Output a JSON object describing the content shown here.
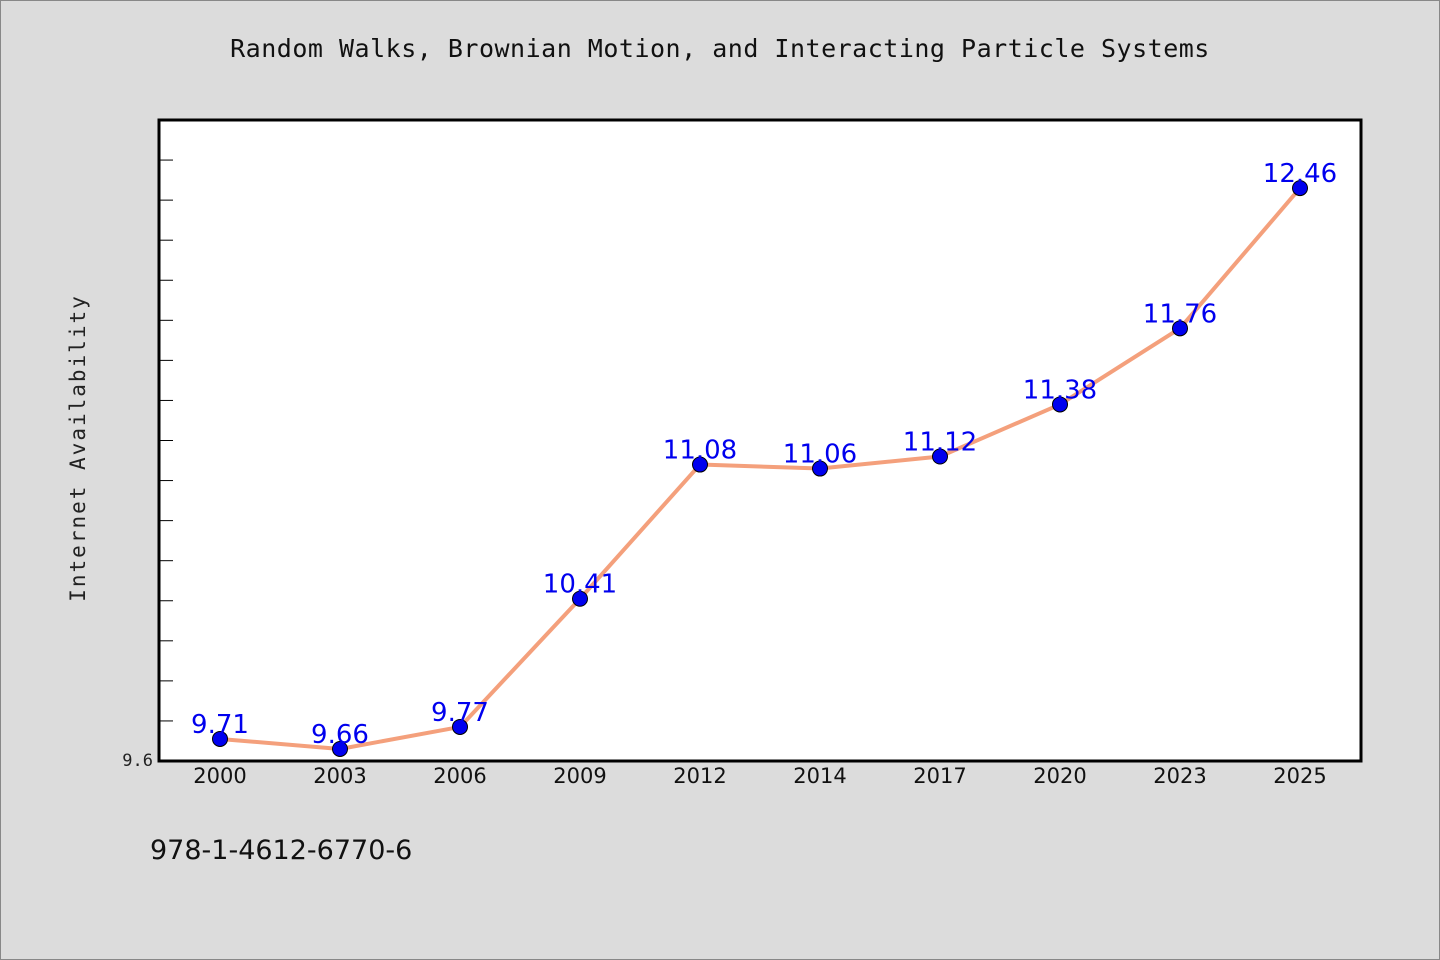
{
  "isbn_label": "978-1-4612-6770-6",
  "chart_data": {
    "type": "line",
    "title": "Random Walks, Brownian Motion, and Interacting Particle Systems",
    "xlabel": "",
    "ylabel": "Internet Availability",
    "categories": [
      "2000",
      "2003",
      "2006",
      "2009",
      "2012",
      "2014",
      "2017",
      "2020",
      "2023",
      "2025"
    ],
    "values": [
      9.71,
      9.66,
      9.77,
      10.41,
      11.08,
      11.06,
      11.12,
      11.38,
      11.76,
      12.46
    ],
    "value_labels": [
      "9.71",
      "9.66",
      "9.77",
      "10.41",
      "11.08",
      "11.06",
      "11.12",
      "11.38",
      "11.76",
      "12.46"
    ],
    "y_tick_labels": [
      "9.6"
    ],
    "ylim": [
      9.6,
      12.8
    ],
    "grid": false,
    "line_color": "#f4a07c",
    "marker_color": "#0000ee",
    "label_color": "#0000ee"
  }
}
